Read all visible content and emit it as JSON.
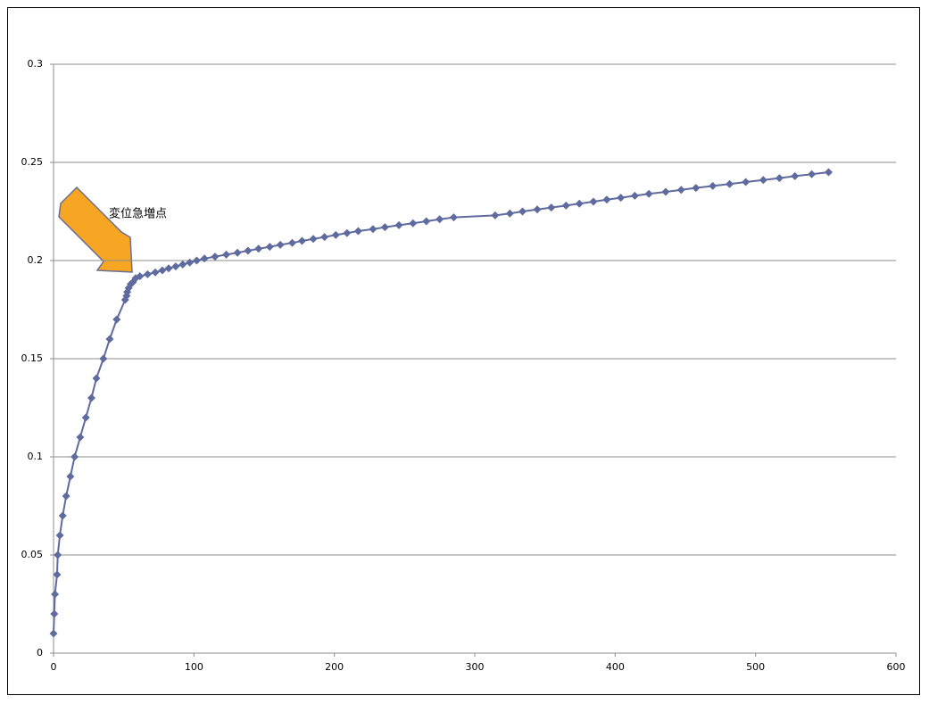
{
  "chart_data": {
    "type": "scatter_line",
    "annotation": "変位急増点",
    "x": [
      0,
      0.5,
      1,
      2.5,
      3,
      4.5,
      6.5,
      9,
      12,
      15,
      19,
      23,
      27,
      30.5,
      35.5,
      40,
      45,
      51,
      52,
      52.5,
      53.5,
      55,
      56.5,
      58.5,
      61.5,
      67,
      72.5,
      77.5,
      82,
      87,
      92,
      97,
      102,
      107.5,
      115,
      123,
      131,
      138.5,
      146,
      154,
      161.5,
      170,
      177,
      185,
      193,
      201,
      209,
      217,
      227.5,
      236,
      246,
      256,
      265.5,
      275,
      285,
      314.5,
      325,
      334,
      344.5,
      354.5,
      365,
      374.5,
      384.5,
      394,
      404,
      414,
      424,
      436,
      447,
      457.5,
      469.5,
      481.5,
      493,
      505.5,
      517,
      528,
      540,
      552
    ],
    "series": [
      {
        "color": "#5f6b9e",
        "values": [
          0.01,
          0.02,
          0.03,
          0.04,
          0.05,
          0.06,
          0.07,
          0.08,
          0.09,
          0.1,
          0.11,
          0.12,
          0.13,
          0.14,
          0.15,
          0.16,
          0.17,
          0.18,
          0.182,
          0.184,
          0.186,
          0.188,
          0.189,
          0.191,
          0.192,
          0.193,
          0.194,
          0.195,
          0.196,
          0.197,
          0.198,
          0.199,
          0.2,
          0.201,
          0.202,
          0.203,
          0.204,
          0.205,
          0.206,
          0.207,
          0.208,
          0.209,
          0.21,
          0.211,
          0.212,
          0.213,
          0.214,
          0.215,
          0.216,
          0.217,
          0.218,
          0.219,
          0.22,
          0.221,
          0.222,
          0.223,
          0.224,
          0.225,
          0.226,
          0.227,
          0.228,
          0.229,
          0.23,
          0.231,
          0.232,
          0.233,
          0.234,
          0.235,
          0.236,
          0.237,
          0.238,
          0.239,
          0.24,
          0.241,
          0.242,
          0.243,
          0.244,
          0.245
        ]
      }
    ],
    "xlim": [
      0,
      600
    ],
    "xticks": [
      0,
      100,
      200,
      300,
      400,
      500,
      600
    ],
    "ylim": [
      0,
      0.3
    ],
    "yticks": [
      0,
      0.05,
      0.1,
      0.15,
      0.2,
      0.25,
      0.3
    ],
    "grid": true
  }
}
